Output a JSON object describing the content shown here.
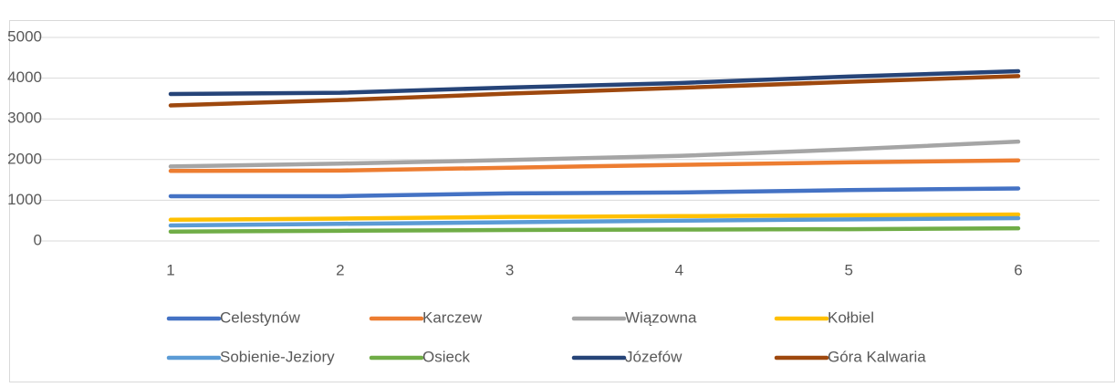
{
  "chart_data": {
    "type": "line",
    "categories": [
      "1",
      "2",
      "3",
      "4",
      "5",
      "6"
    ],
    "series": [
      {
        "name": "Celestynów",
        "color": "#4472c4",
        "values": [
          1100,
          1100,
          1170,
          1190,
          1250,
          1290
        ]
      },
      {
        "name": "Karczew",
        "color": "#ed7d31",
        "values": [
          1720,
          1730,
          1800,
          1870,
          1930,
          1980
        ]
      },
      {
        "name": "Wiązowna",
        "color": "#a5a5a5",
        "values": [
          1830,
          1900,
          1990,
          2090,
          2250,
          2440
        ]
      },
      {
        "name": "Kołbiel",
        "color": "#ffc000",
        "values": [
          520,
          550,
          590,
          610,
          630,
          650
        ]
      },
      {
        "name": "Sobienie-Jeziory",
        "color": "#5b9bd5",
        "values": [
          380,
          420,
          460,
          500,
          530,
          560
        ]
      },
      {
        "name": "Osieck",
        "color": "#70ad47",
        "values": [
          230,
          250,
          270,
          280,
          290,
          310
        ]
      },
      {
        "name": "Józefów",
        "color": "#264478",
        "values": [
          3610,
          3640,
          3770,
          3880,
          4040,
          4170
        ]
      },
      {
        "name": "Góra Kalwaria",
        "color": "#9e480e",
        "values": [
          3330,
          3460,
          3620,
          3760,
          3910,
          4050
        ]
      }
    ],
    "ylim": [
      0,
      5000
    ],
    "yticks": [
      0,
      1000,
      2000,
      3000,
      4000,
      5000
    ],
    "grid": true,
    "legend": "bottom"
  }
}
